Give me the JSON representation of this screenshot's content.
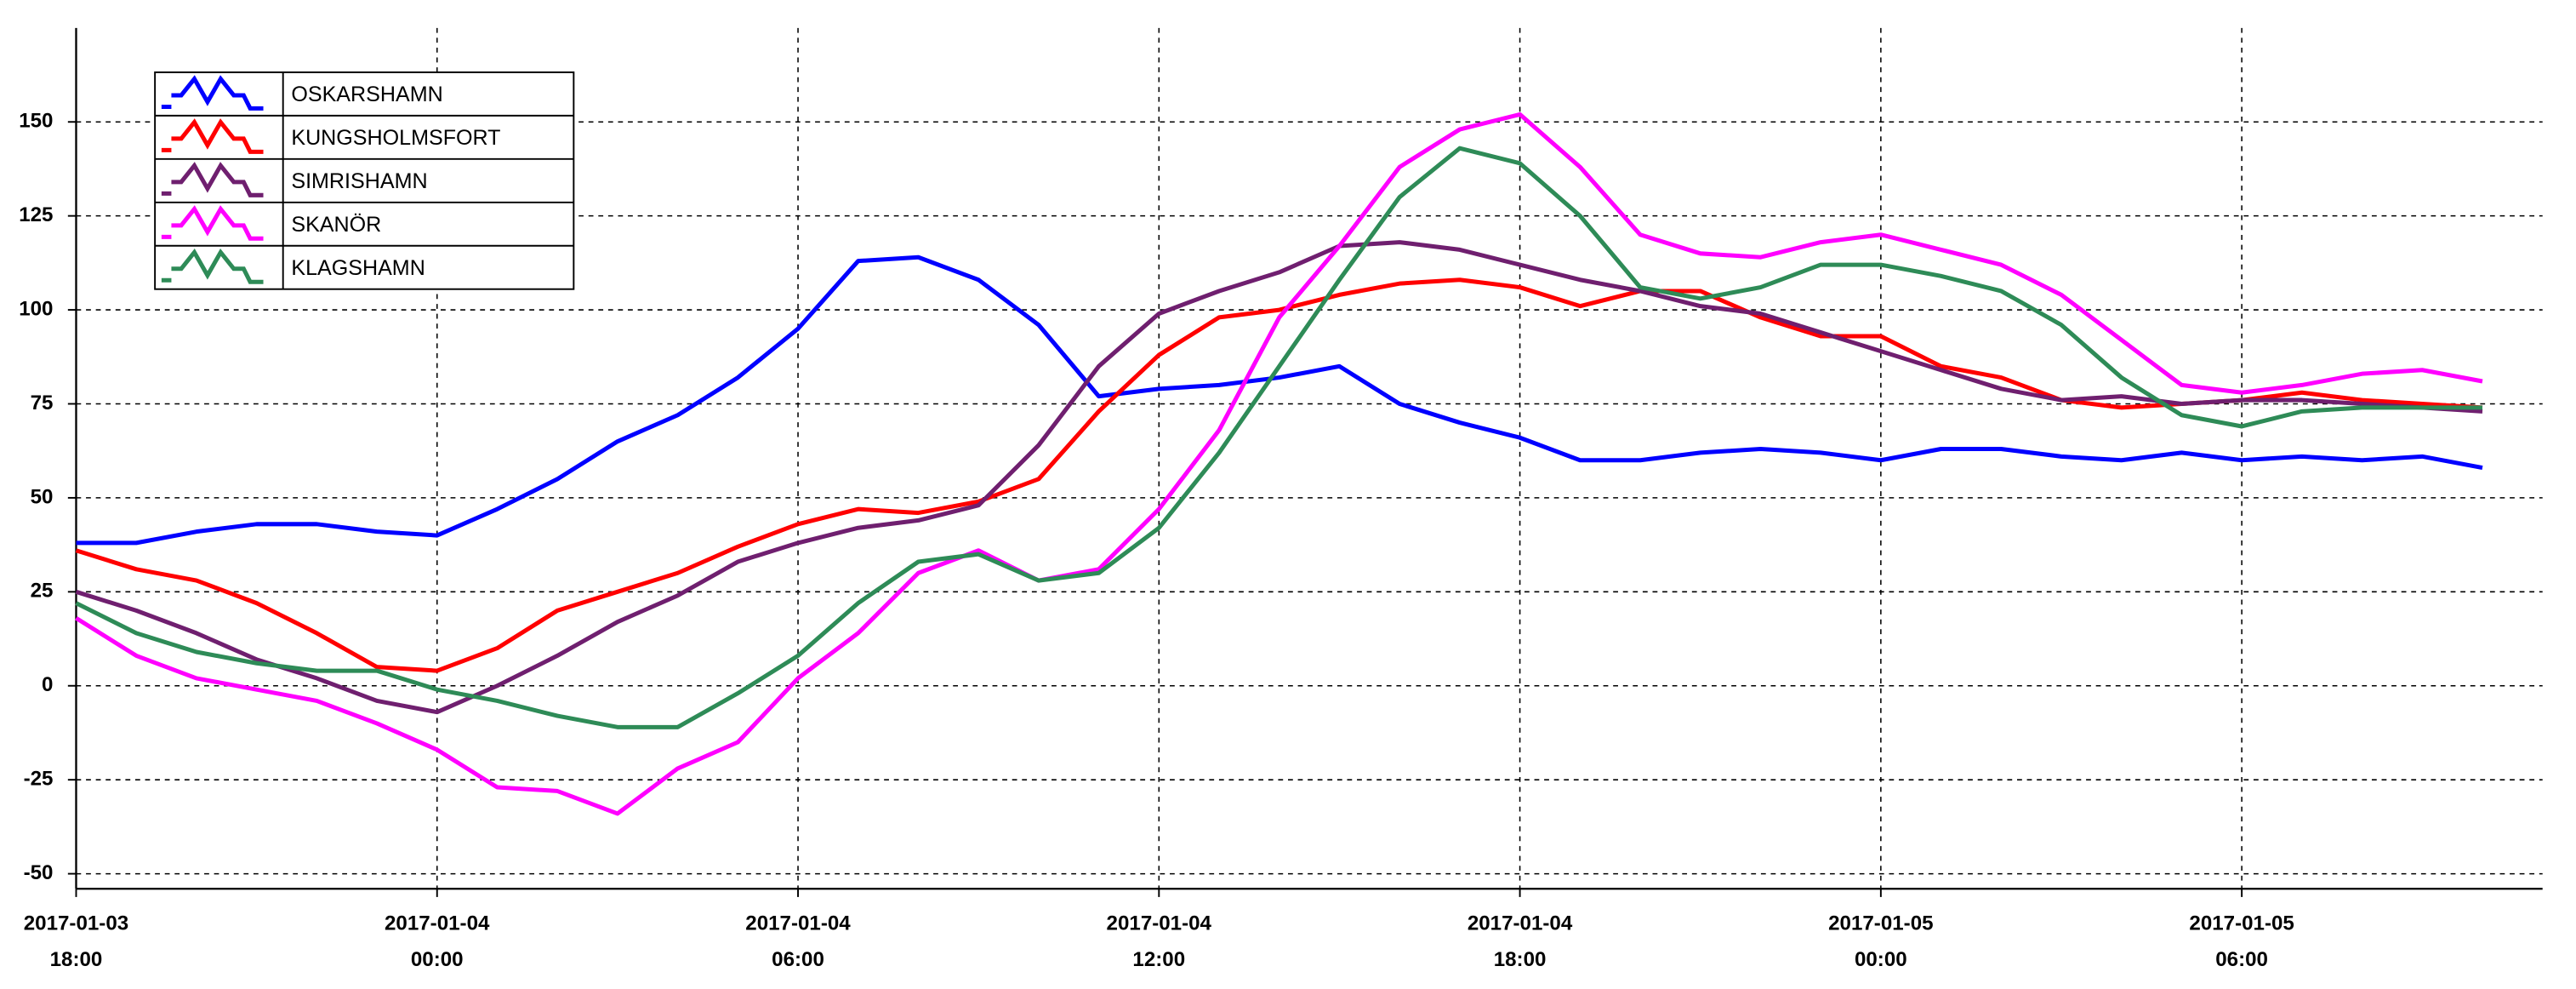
{
  "chart_data": {
    "type": "line",
    "x": [
      "2017-01-03 18:00",
      "2017-01-03 19:00",
      "2017-01-03 20:00",
      "2017-01-03 21:00",
      "2017-01-03 22:00",
      "2017-01-03 23:00",
      "2017-01-04 00:00",
      "2017-01-04 01:00",
      "2017-01-04 02:00",
      "2017-01-04 03:00",
      "2017-01-04 04:00",
      "2017-01-04 05:00",
      "2017-01-04 06:00",
      "2017-01-04 07:00",
      "2017-01-04 08:00",
      "2017-01-04 09:00",
      "2017-01-04 10:00",
      "2017-01-04 11:00",
      "2017-01-04 12:00",
      "2017-01-04 13:00",
      "2017-01-04 14:00",
      "2017-01-04 15:00",
      "2017-01-04 16:00",
      "2017-01-04 17:00",
      "2017-01-04 18:00",
      "2017-01-04 19:00",
      "2017-01-04 20:00",
      "2017-01-04 21:00",
      "2017-01-04 22:00",
      "2017-01-04 23:00",
      "2017-01-05 00:00",
      "2017-01-05 01:00",
      "2017-01-05 02:00",
      "2017-01-05 03:00",
      "2017-01-05 04:00",
      "2017-01-05 05:00",
      "2017-01-05 06:00",
      "2017-01-05 07:00",
      "2017-01-05 08:00",
      "2017-01-05 09:00",
      "2017-01-05 10:00"
    ],
    "series": [
      {
        "name": "OSKARSHAMN",
        "color": "#0000ff",
        "values": [
          38,
          38,
          41,
          43,
          43,
          41,
          40,
          47,
          55,
          65,
          72,
          82,
          95,
          113,
          114,
          108,
          96,
          77,
          79,
          80,
          82,
          85,
          75,
          70,
          66,
          60,
          60,
          62,
          63,
          62,
          60,
          63,
          63,
          61,
          60,
          62,
          60,
          61,
          60,
          61,
          58
        ]
      },
      {
        "name": "KUNGSHOLMSFORT",
        "color": "#ff0000",
        "values": [
          36,
          31,
          28,
          22,
          14,
          5,
          4,
          10,
          20,
          25,
          30,
          37,
          43,
          47,
          46,
          49,
          55,
          73,
          88,
          98,
          100,
          104,
          107,
          108,
          106,
          101,
          105,
          105,
          98,
          93,
          93,
          85,
          82,
          76,
          74,
          75,
          76,
          78,
          76,
          75,
          74
        ]
      },
      {
        "name": "SIMRISHAMN",
        "color": "#6f1f6f",
        "values": [
          25,
          20,
          14,
          7,
          2,
          -4,
          -7,
          0,
          8,
          17,
          24,
          33,
          38,
          42,
          44,
          48,
          64,
          85,
          99,
          105,
          110,
          117,
          118,
          116,
          112,
          108,
          105,
          101,
          99,
          94,
          89,
          84,
          79,
          76,
          77,
          75,
          76,
          76,
          75,
          74,
          73
        ]
      },
      {
        "name": "SKANÖR",
        "color": "#ff00ff",
        "values": [
          18,
          8,
          2,
          -1,
          -4,
          -10,
          -17,
          -27,
          -28,
          -34,
          -22,
          -15,
          2,
          14,
          30,
          36,
          28,
          31,
          47,
          68,
          98,
          117,
          138,
          148,
          152,
          138,
          120,
          115,
          114,
          118,
          120,
          116,
          112,
          104,
          92,
          80,
          78,
          80,
          83,
          84,
          81
        ]
      },
      {
        "name": "KLAGSHAMN",
        "color": "#2e8b57",
        "values": [
          22,
          14,
          9,
          6,
          4,
          4,
          -1,
          -4,
          -8,
          -11,
          -11,
          -2,
          8,
          22,
          33,
          35,
          28,
          30,
          42,
          62,
          85,
          108,
          130,
          143,
          139,
          125,
          106,
          103,
          106,
          112,
          112,
          109,
          105,
          96,
          82,
          72,
          69,
          73,
          74,
          74,
          74
        ]
      }
    ],
    "xlim": [
      "2017-01-03 18:00",
      "2017-01-05 11:00"
    ],
    "xticks": [
      "2017-01-03 18:00",
      "2017-01-04 00:00",
      "2017-01-04 06:00",
      "2017-01-04 12:00",
      "2017-01-04 18:00",
      "2017-01-05 00:00",
      "2017-01-05 06:00"
    ],
    "ylim": [
      -54,
      175
    ],
    "yticks": [
      -50,
      -25,
      0,
      25,
      50,
      75,
      100,
      125,
      150
    ],
    "grid": true,
    "legend": "upper left"
  }
}
